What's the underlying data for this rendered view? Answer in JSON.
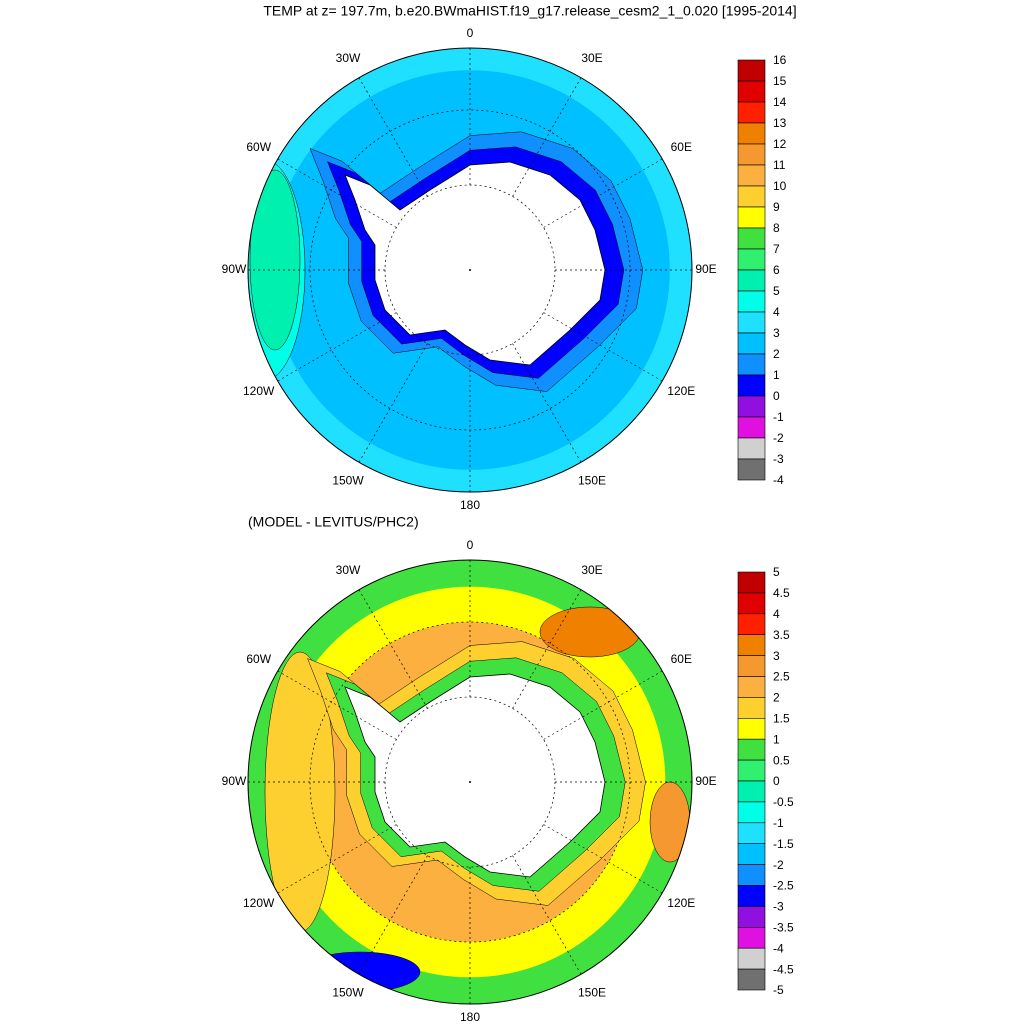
{
  "title": "TEMP at z= 197.7m, b.e20.BWmaHIST.f19_g17.release_cesm2_1_0.020 [1995-2014]",
  "panels": [
    {
      "lon_labels": [
        "0",
        "30E",
        "60E",
        "90E",
        "120E",
        "150E",
        "180",
        "150W",
        "120W",
        "90W",
        "60W",
        "30W"
      ],
      "colorbar": {
        "levels": [
          16,
          15,
          14,
          13,
          12,
          11,
          10,
          9,
          8,
          7,
          6,
          5,
          4,
          3,
          2,
          1,
          0,
          -1,
          -2,
          -3,
          -4
        ],
        "colors": [
          "#c00000",
          "#e00000",
          "#ff2000",
          "#f08000",
          "#f59830",
          "#fbb040",
          "#fdd030",
          "#ffff00",
          "#40e040",
          "#30f070",
          "#00f0b0",
          "#00ffe8",
          "#20e0ff",
          "#00c0ff",
          "#1090ff",
          "#0000ff",
          "#9010e0",
          "#e010e0",
          "#d0d0d0",
          "#707070"
        ]
      }
    },
    {
      "subtitle": "(MODEL - LEVITUS/PHC2)",
      "lon_labels": [
        "0",
        "30E",
        "60E",
        "90E",
        "120E",
        "150E",
        "180",
        "150W",
        "120W",
        "90W",
        "60W",
        "30W"
      ],
      "colorbar": {
        "levels": [
          5,
          4.5,
          4,
          3.5,
          3,
          2.5,
          2,
          1.5,
          1,
          0.5,
          0,
          -0.5,
          -1,
          -1.5,
          -2,
          -2.5,
          -3,
          -3.5,
          -4,
          -4.5,
          -5
        ],
        "colors": [
          "#c00000",
          "#e00000",
          "#ff2000",
          "#f08000",
          "#f59830",
          "#fbb040",
          "#fdd030",
          "#ffff00",
          "#40e040",
          "#30f070",
          "#00f0b0",
          "#00ffe8",
          "#20e0ff",
          "#00c0ff",
          "#1090ff",
          "#0000ff",
          "#9010e0",
          "#e010e0",
          "#d0d0d0",
          "#707070"
        ]
      }
    }
  ]
}
